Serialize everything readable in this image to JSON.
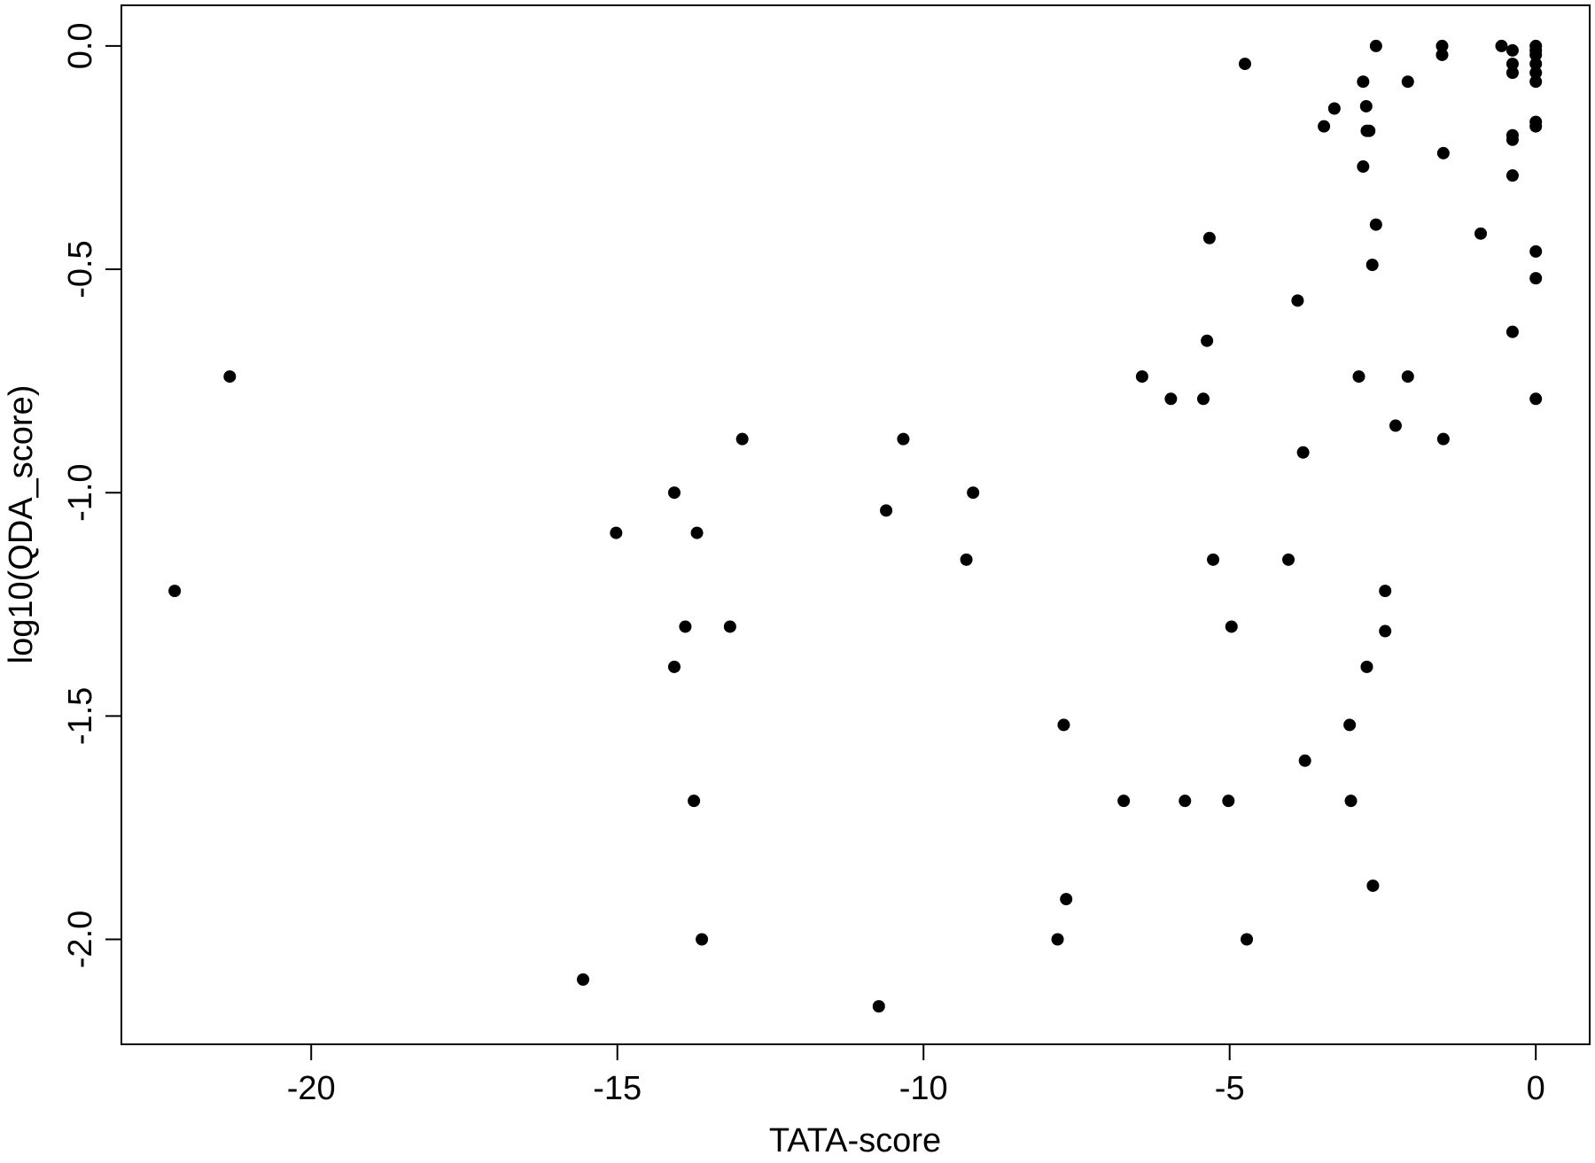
{
  "chart_data": {
    "type": "scatter",
    "xlabel": "TATA-score",
    "ylabel": "log10(QDA_score)",
    "color": "#000000",
    "xlim": [
      -23.1,
      0.88
    ],
    "ylim": [
      -2.235,
      0.091
    ],
    "xticks": [
      -20,
      -15,
      -10,
      -5,
      0
    ],
    "yticks": [
      {
        "value": 0,
        "label": "0.0"
      },
      {
        "value": -0.5,
        "label": "-0.5"
      },
      {
        "value": -1,
        "label": "-1.0"
      },
      {
        "value": -1.5,
        "label": "-1.5"
      },
      {
        "value": -2,
        "label": "-2.0"
      }
    ],
    "x": [
      -22.23,
      -21.33,
      -15.56,
      -15.02,
      -14.07,
      -13.7,
      -13.89,
      -13.16,
      -14.07,
      -13.75,
      -13.62,
      -12.96,
      -10.73,
      -10.61,
      -10.33,
      -9.19,
      -9.3,
      -7.81,
      -7.71,
      -7.67,
      -6.73,
      -6.43,
      -5.96,
      -5.73,
      -5.43,
      -5.37,
      -5.33,
      -5.27,
      -5.02,
      -4.97,
      -4.75,
      -4.72,
      -4.04,
      -3.89,
      -3.8,
      -3.77,
      -3.46,
      -3.29,
      -3.04,
      -3.02,
      -2.89,
      -2.82,
      -2.82,
      -2.77,
      -2.76,
      -2.72,
      -2.76,
      -2.67,
      -2.66,
      -2.61,
      -2.61,
      -2.46,
      -2.46,
      -2.29,
      -2.09,
      -2.09,
      -1.53,
      -1.53,
      -1.51,
      -1.51,
      -0.9,
      -0.56,
      -0.38,
      -0.38,
      -0.38,
      -0.38,
      -0.38,
      -0.38,
      -0.38,
      0,
      0,
      0,
      0,
      0,
      0,
      0,
      0,
      0,
      0,
      0
    ],
    "y": [
      -1.22,
      -0.74,
      -2.09,
      -1.09,
      -1,
      -1.09,
      -1.3,
      -1.3,
      -1.39,
      -1.69,
      -2,
      -0.88,
      -2.15,
      -1.04,
      -0.88,
      -1,
      -1.15,
      -2,
      -1.52,
      -1.91,
      -1.69,
      -0.74,
      -0.79,
      -1.69,
      -0.79,
      -0.66,
      -0.43,
      -1.15,
      -1.69,
      -1.3,
      -0.04,
      -2,
      -1.15,
      -0.57,
      -0.91,
      -1.6,
      -0.18,
      -0.14,
      -1.52,
      -1.69,
      -0.74,
      -0.08,
      -0.27,
      -0.135,
      -0.19,
      -0.19,
      -1.39,
      -0.49,
      -1.88,
      0,
      -0.4,
      -1.22,
      -1.31,
      -0.85,
      -0.08,
      -0.74,
      0,
      -0.02,
      -0.24,
      -0.88,
      -0.42,
      0,
      -0.01,
      -0.04,
      -0.06,
      -0.2,
      -0.21,
      -0.29,
      -0.64,
      0,
      -0.01,
      -0.02,
      -0.04,
      -0.06,
      -0.08,
      -0.17,
      -0.18,
      -0.46,
      -0.52,
      -0.79
    ]
  }
}
